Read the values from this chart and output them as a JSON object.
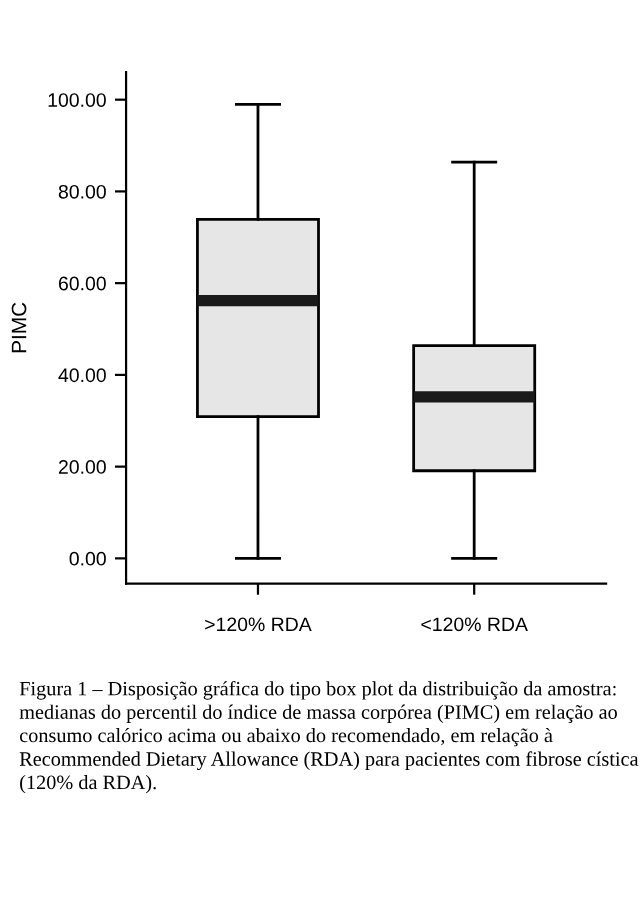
{
  "chart_data": {
    "type": "box",
    "ylabel": "PIMC",
    "categories": [
      ">120% RDA",
      "<120% RDA"
    ],
    "boxes": [
      {
        "low": 0,
        "q1": 30.9,
        "median": 56.2,
        "q3": 73.9,
        "high": 99.0
      },
      {
        "low": 0,
        "q1": 19.1,
        "median": 35.2,
        "q3": 46.4,
        "high": 86.4
      }
    ],
    "color": "#e6e6e6",
    "ylim": [
      -5.5,
      106
    ],
    "yticks": [
      {
        "value": 0,
        "label": "0.00"
      },
      {
        "value": 20,
        "label": "20.00"
      },
      {
        "value": 40,
        "label": "40.00"
      },
      {
        "value": 60,
        "label": "60.00"
      },
      {
        "value": 80,
        "label": "80.00"
      },
      {
        "value": 100,
        "label": "100.00"
      }
    ],
    "grid": false,
    "annotations": [
      "Figura 1 – Disposição gráfica do tipo box plot da distribuição da amostra: medianas do percentil do índice de massa corpórea (PIMC) em relação ao consumo calórico acima ou abaixo do recomendado, em relação à Recommended Dietary Allowance (RDA) para pacientes com fibrose cística (120% da RDA)."
    ]
  }
}
